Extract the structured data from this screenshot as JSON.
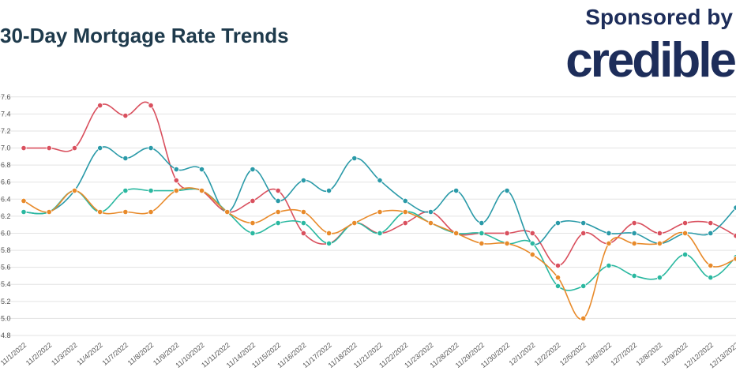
{
  "header": {
    "title": "30-Day Mortgage Rate Trends",
    "sponsor_text": "Sponsored by",
    "sponsor_logo": "credible"
  },
  "chart_data": {
    "type": "line",
    "title": "30-Day Mortgage Rate Trends",
    "xlabel": "",
    "ylabel": "",
    "ylim": [
      4.8,
      7.7
    ],
    "yticks": [
      "7.6",
      "7.4",
      "7.2",
      "7.0",
      "6.8",
      "6.6",
      "6.4",
      "6.2",
      "6.0",
      "5.8",
      "5.6",
      "5.4",
      "5.2",
      "5.0",
      "4.8"
    ],
    "grid": true,
    "categories": [
      "11/1/2022",
      "11/2/2022",
      "11/3/2022",
      "11/4/2022",
      "11/7/2022",
      "11/8/2022",
      "11/9/2022",
      "11/10/2022",
      "11/11/2022",
      "11/14/2022",
      "11/15/2022",
      "11/16/2022",
      "11/17/2022",
      "11/18/2022",
      "11/21/2022",
      "11/22/2022",
      "11/23/2022",
      "11/28/2022",
      "11/29/2022",
      "11/30/2022",
      "12/1/2022",
      "12/2/2022",
      "12/5/2022",
      "12/6/2022",
      "12/7/2022",
      "12/8/2022",
      "12/9/2022",
      "12/12/2022",
      "12/13/2022"
    ],
    "series": [
      {
        "color": "#d9505e",
        "values": [
          7.0,
          7.0,
          7.0,
          7.5,
          7.38,
          7.5,
          6.62,
          6.5,
          6.25,
          6.38,
          6.5,
          6.0,
          5.88,
          6.12,
          6.0,
          6.12,
          6.25,
          6.0,
          6.0,
          6.0,
          6.0,
          5.62,
          6.0,
          5.88,
          6.12,
          6.0,
          6.12,
          6.12,
          5.97
        ]
      },
      {
        "color": "#2a9aa8",
        "values": [
          6.25,
          6.25,
          6.5,
          7.0,
          6.88,
          7.0,
          6.75,
          6.75,
          6.25,
          6.75,
          6.38,
          6.62,
          6.5,
          6.88,
          6.62,
          6.38,
          6.25,
          6.5,
          6.12,
          6.5,
          5.88,
          6.12,
          6.12,
          6.0,
          6.0,
          5.88,
          6.0,
          6.0,
          6.3
        ]
      },
      {
        "color": "#2ab8a0",
        "values": [
          6.25,
          6.25,
          6.5,
          6.25,
          6.5,
          6.5,
          6.5,
          6.5,
          6.25,
          6.0,
          6.12,
          6.12,
          5.88,
          6.12,
          6.0,
          6.25,
          6.12,
          6.0,
          6.0,
          5.88,
          5.88,
          5.38,
          5.38,
          5.62,
          5.5,
          5.48,
          5.75,
          5.48,
          5.72
        ]
      },
      {
        "color": "#e88a2a",
        "values": [
          6.38,
          6.25,
          6.5,
          6.25,
          6.25,
          6.25,
          6.5,
          6.5,
          6.25,
          6.12,
          6.25,
          6.25,
          6.0,
          6.12,
          6.25,
          6.25,
          6.12,
          6.0,
          5.88,
          5.88,
          5.75,
          5.48,
          5.0,
          5.88,
          5.88,
          5.88,
          6.0,
          5.62,
          5.7
        ]
      }
    ]
  }
}
